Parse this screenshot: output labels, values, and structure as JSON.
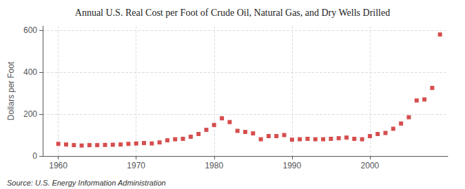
{
  "chart_data": {
    "type": "scatter",
    "title": "Annual U.S. Real Cost per Foot of Crude Oil, Natural Gas, and Dry Wells Drilled",
    "ylabel": "Dollars per Foot",
    "annotation": "Source: U.S. Energy Information Administration",
    "x": [
      1960,
      1961,
      1962,
      1963,
      1964,
      1965,
      1966,
      1967,
      1968,
      1969,
      1970,
      1971,
      1972,
      1973,
      1974,
      1975,
      1976,
      1977,
      1978,
      1979,
      1980,
      1981,
      1982,
      1983,
      1984,
      1985,
      1986,
      1987,
      1988,
      1989,
      1990,
      1991,
      1992,
      1993,
      1994,
      1995,
      1996,
      1997,
      1998,
      1999,
      2000,
      2001,
      2002,
      2003,
      2004,
      2005,
      2006,
      2007,
      2008,
      2009
    ],
    "values": [
      58,
      55,
      52,
      50,
      52,
      52,
      53,
      54,
      55,
      58,
      60,
      62,
      60,
      65,
      75,
      80,
      82,
      92,
      105,
      125,
      148,
      180,
      162,
      120,
      115,
      108,
      80,
      95,
      95,
      100,
      78,
      80,
      82,
      80,
      80,
      82,
      85,
      88,
      82,
      80,
      95,
      105,
      110,
      130,
      155,
      185,
      265,
      270,
      325,
      580
    ],
    "color": "#cc2222",
    "marker": "square",
    "xlim": [
      1958,
      2010
    ],
    "xticks": [
      1960,
      1970,
      1980,
      1990,
      2000
    ],
    "ylim": [
      0,
      620
    ],
    "yticks": [
      0,
      200,
      400,
      600
    ],
    "grid": true
  }
}
